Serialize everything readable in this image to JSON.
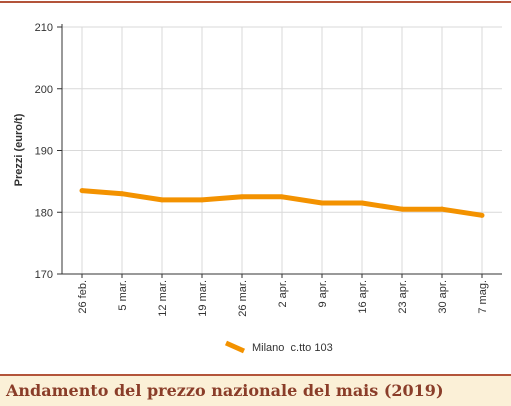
{
  "caption": "Andamento del prezzo nazionale del mais (2019)",
  "colors": {
    "series": "#f39200",
    "frame": "#b3543a",
    "caption_bg": "#fbf0d7",
    "caption_text": "#8a3d29",
    "grid": "#d9d9d9"
  },
  "chart_data": {
    "type": "line",
    "title": "",
    "xlabel": "",
    "ylabel": "Prezzi (euro/t)",
    "ylim": [
      170,
      210
    ],
    "yticks": [
      170,
      180,
      190,
      200,
      210
    ],
    "grid": true,
    "legend_position": "bottom",
    "categories": [
      "26 feb.",
      "5 mar.",
      "12 mar.",
      "19 mar.",
      "26 mar.",
      "2 apr.",
      "9 apr.",
      "16 apr.",
      "23 apr.",
      "30 apr.",
      "7 mag."
    ],
    "series": [
      {
        "name": "Milano  c.tto 103",
        "values": [
          183.5,
          183,
          182,
          182,
          182.5,
          182.5,
          181.5,
          181.5,
          180.5,
          180.5,
          179.5
        ]
      }
    ]
  }
}
